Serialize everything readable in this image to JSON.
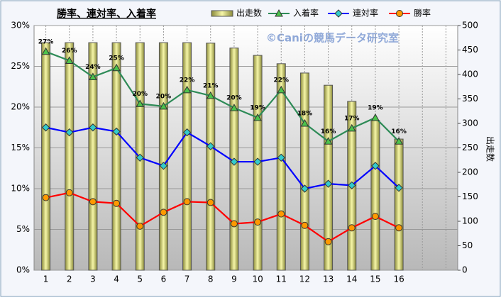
{
  "chart_data": {
    "type": "bar-line",
    "title": "勝率、連対率、入着率",
    "annotation": "©Caniの競馬データ研究室",
    "y2label": "出走数",
    "categories": [
      "1",
      "2",
      "3",
      "4",
      "5",
      "6",
      "7",
      "8",
      "9",
      "10",
      "11",
      "12",
      "13",
      "14",
      "15",
      "16",
      null,
      null
    ],
    "series": [
      {
        "name": "出走数",
        "kind": "bar",
        "axis": "y2",
        "color": "#e8e890",
        "values": [
          465,
          465,
          465,
          465,
          465,
          465,
          465,
          464,
          454,
          439,
          422,
          403,
          378,
          345,
          306,
          268,
          null,
          null
        ]
      },
      {
        "name": "入着率",
        "kind": "line",
        "marker": "triangle",
        "color": "#2e8b57",
        "markerColor": "#4cc44c",
        "values": [
          26.8,
          25.7,
          23.7,
          24.8,
          20.4,
          20.1,
          22.1,
          21.4,
          19.9,
          18.7,
          22.1,
          18.0,
          15.8,
          17.4,
          18.7,
          15.8,
          null,
          null
        ],
        "value_labels": [
          "27%",
          "26%",
          "24%",
          "25%",
          "20%",
          "20%",
          "22%",
          "21%",
          "20%",
          "19%",
          "22%",
          "18%",
          "16%",
          "17%",
          "19%",
          "16%",
          null,
          null
        ]
      },
      {
        "name": "連対率",
        "kind": "line",
        "marker": "diamond",
        "color": "#0000ff",
        "markerColor": "#33cccc",
        "values": [
          17.5,
          16.9,
          17.5,
          17.0,
          13.8,
          12.8,
          16.9,
          15.2,
          13.3,
          13.3,
          13.8,
          10.0,
          10.6,
          10.4,
          12.8,
          10.1,
          null,
          null
        ]
      },
      {
        "name": "勝率",
        "kind": "line",
        "marker": "circle",
        "color": "#ff0000",
        "markerColor": "#ff9900",
        "values": [
          8.9,
          9.5,
          8.4,
          8.2,
          5.4,
          7.1,
          8.4,
          8.3,
          5.7,
          5.9,
          6.9,
          5.5,
          3.5,
          5.2,
          6.6,
          5.2,
          null,
          null
        ]
      }
    ],
    "ylim": [
      0,
      30
    ],
    "yticks": [
      {
        "value": 0,
        "label": "0%"
      },
      {
        "value": 5,
        "label": "5%"
      },
      {
        "value": 10,
        "label": "10%"
      },
      {
        "value": 15,
        "label": "15%"
      },
      {
        "value": 20,
        "label": "20%"
      },
      {
        "value": 25,
        "label": "25%"
      },
      {
        "value": 30,
        "label": "30%"
      }
    ],
    "y2lim": [
      0,
      500
    ],
    "y2ticks": [
      0,
      50,
      100,
      150,
      200,
      250,
      300,
      350,
      400,
      450,
      500
    ],
    "grid": true
  }
}
